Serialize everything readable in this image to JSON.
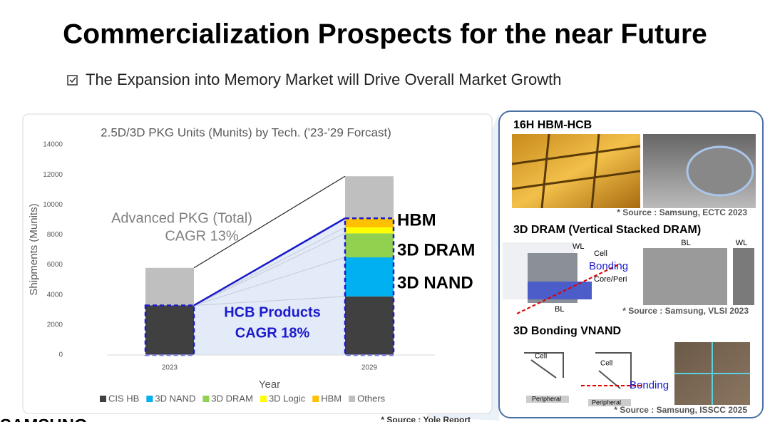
{
  "title": "Commercialization Prospects for the near Future",
  "subtitle": "The Expansion into Memory Market will Drive Overall Market Growth",
  "chart_data": {
    "type": "bar",
    "stacked": true,
    "title": "2.5D/3D PKG Units (Munits)  by Tech. ('23-'29 Forcast)",
    "x_label": "Year",
    "y_label": "Shipments (Munits)",
    "categories": [
      "2023",
      "2029"
    ],
    "series": [
      {
        "name": "CIS HB",
        "color": "#404040",
        "values": [
          3300,
          3900
        ]
      },
      {
        "name": "3D NAND",
        "color": "#00b0f0",
        "values": [
          0,
          2600
        ]
      },
      {
        "name": "3D DRAM",
        "color": "#92d050",
        "values": [
          0,
          1600
        ]
      },
      {
        "name": "3D Logic",
        "color": "#ffff00",
        "values": [
          0,
          400
        ]
      },
      {
        "name": "HBM",
        "color": "#ffc000",
        "values": [
          0,
          600
        ]
      },
      {
        "name": "Others",
        "color": "#bfbfbf",
        "values": [
          2500,
          2800
        ]
      }
    ],
    "ylim": [
      0,
      14000
    ],
    "yticks": [
      0,
      2000,
      4000,
      6000,
      8000,
      10000,
      12000,
      14000
    ],
    "legend": "bottom",
    "annotations": [
      "Advanced PKG (Total)",
      "CAGR 13%",
      "HCB Products",
      "CAGR 18%",
      "HBM",
      "3D DRAM",
      "3D NAND"
    ],
    "source": "* Source : Yole Report"
  },
  "logo": "SAMSUNG",
  "panel": {
    "sections": [
      {
        "heading": "16H HBM-HCB",
        "labels": [],
        "source": "* Source : Samsung, ECTC 2023"
      },
      {
        "heading": "3D DRAM (Vertical Stacked DRAM)",
        "labels": [
          "WL",
          "Cell",
          "Bonding",
          "Core/Peri",
          "BL",
          "BL",
          "WL"
        ],
        "source": "* Source : Samsung, VLSI 2023"
      },
      {
        "heading": "3D Bonding VNAND",
        "labels": [
          "Cell",
          "Cell",
          "Peripheral",
          "Peripheral",
          "Bonding"
        ],
        "source": "* Source : Samsung, ISSCC 2025"
      }
    ]
  }
}
